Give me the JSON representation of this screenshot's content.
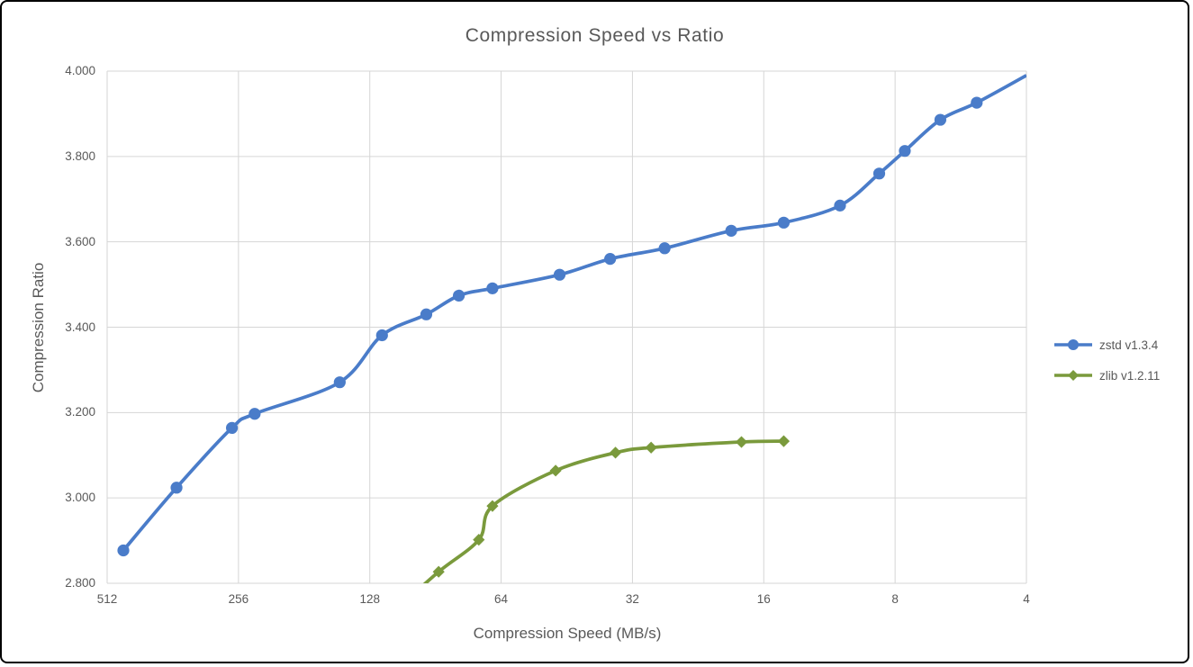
{
  "chart_data": {
    "type": "line",
    "title": "Compression Speed vs Ratio",
    "xlabel": "Compression Speed (MB/s)",
    "ylabel": "Compression Ratio",
    "x_scale": "log2-reversed",
    "xlim": [
      512,
      4
    ],
    "ylim": [
      2.8,
      4.0
    ],
    "grid": true,
    "legend_position": "right",
    "x_ticks": [
      512,
      256,
      128,
      64,
      32,
      16,
      8,
      4
    ],
    "x_tick_labels": [
      "512",
      "256",
      "128",
      "64",
      "32",
      "16",
      "8",
      "4"
    ],
    "y_ticks": [
      4.0,
      3.8,
      3.6,
      3.4,
      3.2,
      3.0,
      2.8
    ],
    "y_tick_labels": [
      "4.000",
      "3.800",
      "3.600",
      "3.400",
      "3.200",
      "3.000",
      "2.800"
    ],
    "series": [
      {
        "name": "zstd v1.3.4",
        "color": "#4a7cc9",
        "marker": "circle",
        "points": [
          {
            "speed": 470,
            "ratio": 2.877
          },
          {
            "speed": 355,
            "ratio": 3.024
          },
          {
            "speed": 265,
            "ratio": 3.164
          },
          {
            "speed": 235,
            "ratio": 3.197
          },
          {
            "speed": 150,
            "ratio": 3.271
          },
          {
            "speed": 120,
            "ratio": 3.381
          },
          {
            "speed": 95,
            "ratio": 3.43
          },
          {
            "speed": 80,
            "ratio": 3.474
          },
          {
            "speed": 67,
            "ratio": 3.491
          },
          {
            "speed": 47,
            "ratio": 3.523
          },
          {
            "speed": 36,
            "ratio": 3.56
          },
          {
            "speed": 27,
            "ratio": 3.585
          },
          {
            "speed": 19,
            "ratio": 3.626
          },
          {
            "speed": 14.4,
            "ratio": 3.645
          },
          {
            "speed": 10.7,
            "ratio": 3.685
          },
          {
            "speed": 8.7,
            "ratio": 3.76
          },
          {
            "speed": 7.6,
            "ratio": 3.813
          },
          {
            "speed": 6.3,
            "ratio": 3.886
          },
          {
            "speed": 5.2,
            "ratio": 3.926
          },
          {
            "speed": 4.0,
            "ratio": 3.99,
            "show_marker": false
          }
        ]
      },
      {
        "name": "zlib v1.2.11",
        "color": "#7a9a3c",
        "marker": "diamond",
        "points": [
          {
            "speed": 110,
            "ratio": 2.743,
            "show_marker": false
          },
          {
            "speed": 89,
            "ratio": 2.827
          },
          {
            "speed": 72,
            "ratio": 2.902
          },
          {
            "speed": 67,
            "ratio": 2.981
          },
          {
            "speed": 48,
            "ratio": 3.064
          },
          {
            "speed": 35,
            "ratio": 3.106
          },
          {
            "speed": 29,
            "ratio": 3.118
          },
          {
            "speed": 18,
            "ratio": 3.131
          },
          {
            "speed": 14.4,
            "ratio": 3.133
          }
        ]
      }
    ]
  },
  "colors": {
    "background": "#ffffff",
    "frame_border": "#000000",
    "gridline": "#d6d6d6",
    "text": "#595959",
    "series_zstd": "#4a7cc9",
    "series_zlib": "#7a9a3c"
  }
}
